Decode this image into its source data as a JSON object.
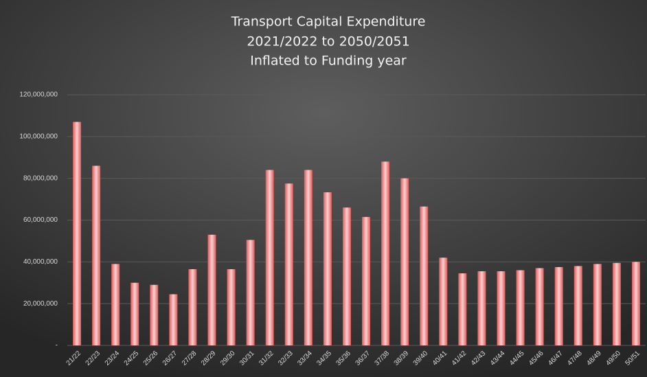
{
  "chart_data": {
    "type": "bar",
    "title": [
      "Transport Capital Expenditure",
      "2021/2022 to 2050/2051",
      "Inflated to Funding year"
    ],
    "categories": [
      "21/22",
      "22/23",
      "23/24",
      "24/25",
      "25/26",
      "26/27",
      "27/28",
      "28/29",
      "29/30",
      "30/31",
      "31/32",
      "32/33",
      "33/34",
      "34/35",
      "35/36",
      "36/37",
      "37/38",
      "38/39",
      "39/40",
      "40/41",
      "41/42",
      "42/43",
      "43/44",
      "44/45",
      "45/46",
      "46/47",
      "47/48",
      "48/49",
      "49/50",
      "50/51"
    ],
    "values": [
      107000000,
      86000000,
      39000000,
      30000000,
      29000000,
      24500000,
      36500000,
      53000000,
      36500000,
      50500000,
      84000000,
      77500000,
      84000000,
      73300000,
      66000000,
      61500000,
      88000000,
      80000000,
      66500000,
      42000000,
      34500000,
      35500000,
      35500000,
      36000000,
      37000000,
      37500000,
      38000000,
      39000000,
      39500000,
      40000000
    ],
    "color": "#e05a5a",
    "ylim": [
      0,
      120000000
    ],
    "yticks": [
      {
        "value": 0,
        "label": "-"
      },
      {
        "value": 20000000,
        "label": "20,000,000"
      },
      {
        "value": 40000000,
        "label": "40,000,000"
      },
      {
        "value": 60000000,
        "label": "60,000,000"
      },
      {
        "value": 80000000,
        "label": "80,000,000"
      },
      {
        "value": 100000000,
        "label": "100,000,000"
      },
      {
        "value": 120000000,
        "label": "120,000,000"
      }
    ],
    "grid": true
  }
}
